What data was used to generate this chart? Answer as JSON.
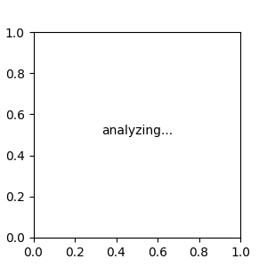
{
  "bg_color": "#E8ECEe",
  "bond_color": "#3A7A6A",
  "N_color": "#0000EE",
  "O_color": "#DD0000",
  "font_size": 9,
  "lw": 1.5
}
